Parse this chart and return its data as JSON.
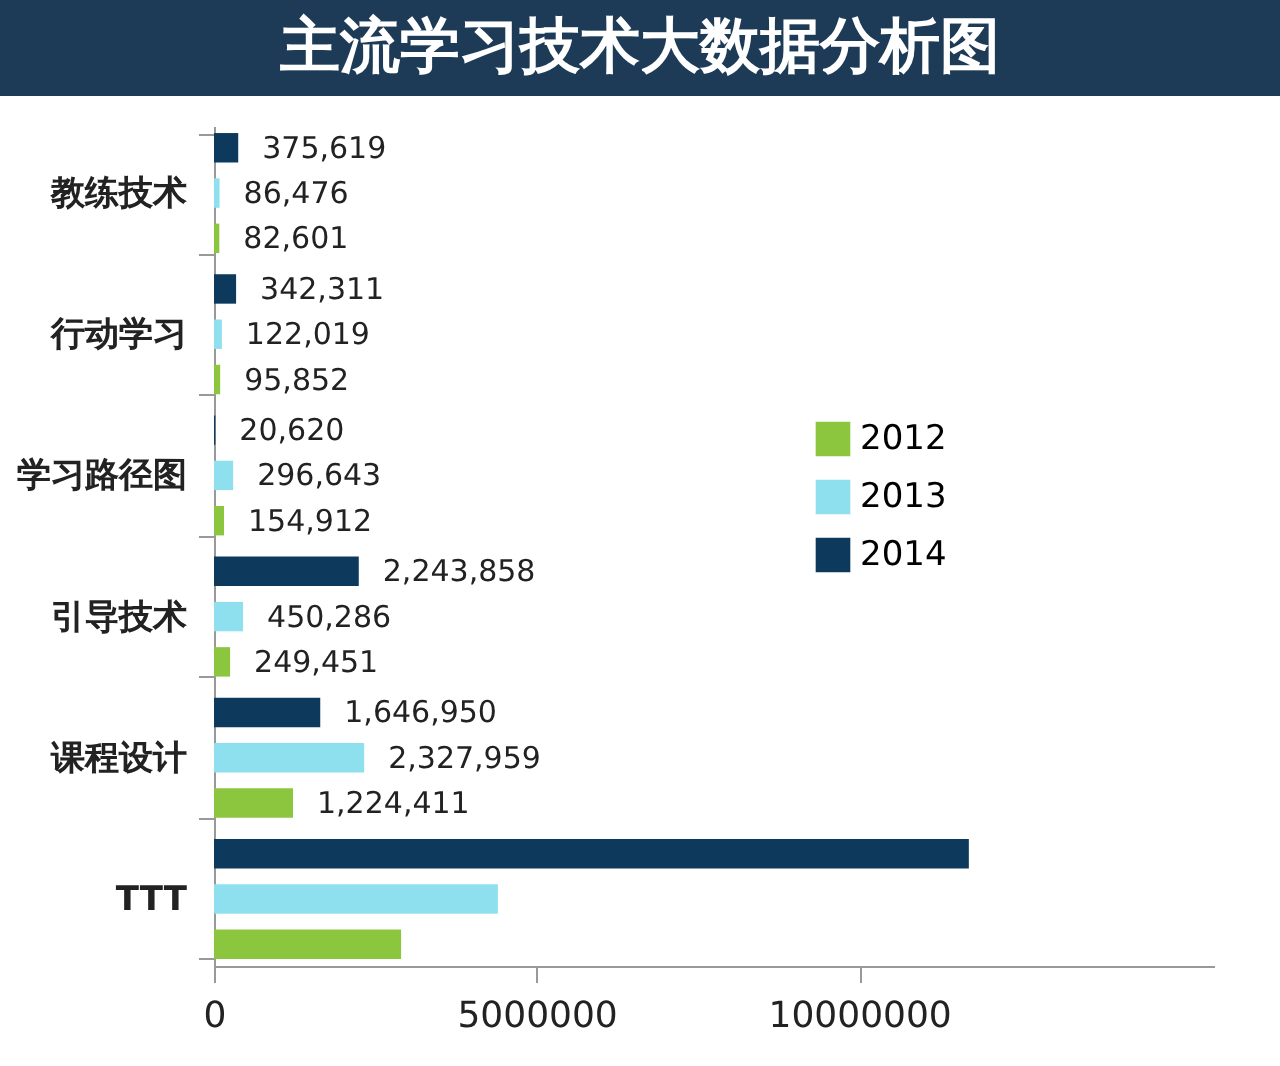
{
  "chart_data": {
    "type": "bar",
    "orientation": "horizontal",
    "title": "主流学习技术大数据分析图",
    "categories": [
      "教练技术",
      "行动学习",
      "学习路径图",
      "引导技术",
      "课程设计",
      "TTT"
    ],
    "series": [
      {
        "name": "2012",
        "color": "#8cc63f",
        "values": [
          82601,
          95852,
          154912,
          249451,
          1224411,
          2900000
        ],
        "value_labels": [
          "82,601",
          "95,852",
          "154,912",
          "249,451",
          "1,224,411",
          null
        ]
      },
      {
        "name": "2013",
        "color": "#8fe0ee",
        "values": [
          86476,
          122019,
          296643,
          450286,
          2327959,
          4400000
        ],
        "value_labels": [
          "86,476",
          "122,019",
          "296,643",
          "450,286",
          "2,327,959",
          null
        ]
      },
      {
        "name": "2014",
        "color": "#0d3a5c",
        "values": [
          375619,
          342311,
          20620,
          2243858,
          1646950,
          11700000
        ],
        "value_labels": [
          "375,619",
          "342,311",
          "20,620",
          "2,243,858",
          "1,646,950",
          null
        ]
      }
    ],
    "xlim": [
      0,
      15500000
    ],
    "xticks": [
      0,
      5000000,
      10000000
    ],
    "grid": false,
    "legend": "right"
  }
}
